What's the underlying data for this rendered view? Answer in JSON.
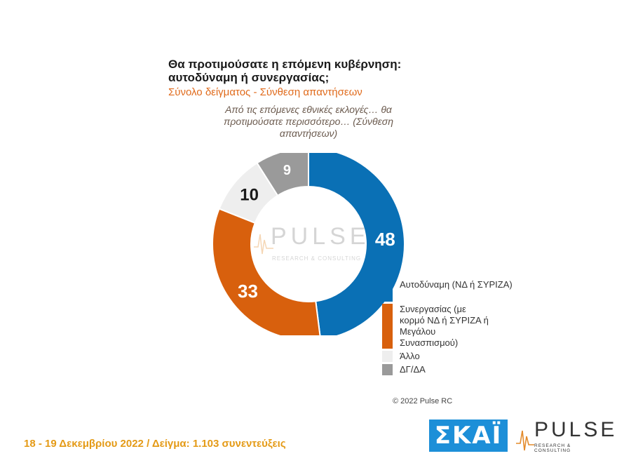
{
  "chart_data": {
    "type": "pie",
    "title": "Θα προτιμούσατε η επόμενη κυβέρνηση: αυτοδύναμη ή συνεργασίας;",
    "subtitle": "Σύνολο δείγματος - Σύνθεση απαντήσεων",
    "question": "Από τις επόμενες εθνικές εκλογές… θα προτιμούσατε περισσότερο… (Σύνθεση απαντήσεων)",
    "categories": [
      "Αυτοδύναμη (ΝΔ ή ΣΥΡΙΖΑ)",
      "Συνεργασίας (με κορμό ΝΔ ή ΣΥΡΙΖΑ ή Μεγάλου Συνασπισμού)",
      "Άλλο",
      "ΔΓ/ΔΑ"
    ],
    "values": [
      48,
      33,
      10,
      9
    ],
    "colors": [
      "#0a70b5",
      "#d8600d",
      "#eeeeee",
      "#9a9a9a"
    ],
    "label_colors": [
      "#ffffff",
      "#ffffff",
      "#1a1a1a",
      "#ffffff"
    ],
    "legend_position": "right"
  },
  "copyright": "© 2022 Pulse RC",
  "footer": "18 - 19  Δεκεμβρίου  2022  /  Δείγμα:  1.103 συνεντεύξεις",
  "logos": {
    "skai": "ΣΚΑΪ",
    "pulse": "PULSE",
    "pulse_sub": "RESEARCH & CONSULTING"
  }
}
